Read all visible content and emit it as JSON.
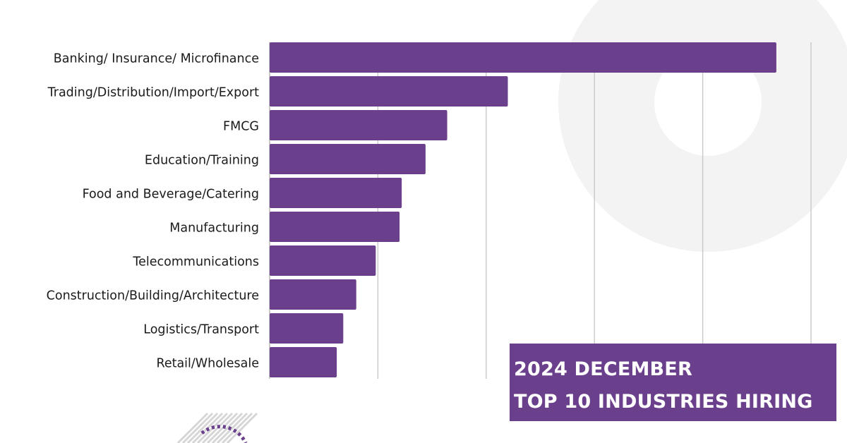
{
  "colors": {
    "bar": "#6a3f8c",
    "grid": "#c8c8c8",
    "background_arc": "#f3f3f3",
    "title_box": "#6a3f8c",
    "title_text": "#ffffff",
    "label_text": "#1a1a1a"
  },
  "title_box": {
    "line1": "2024 DECEMBER",
    "line2": "TOP 10 INDUSTRIES HIRING"
  },
  "chart_data": {
    "type": "bar",
    "orientation": "horizontal",
    "title": "2024 DECEMBER TOP 10 INDUSTRIES HIRING",
    "categories": [
      "Banking/ Insurance/ Microfinance",
      "Trading/Distribution/Import/Export",
      "FMCG",
      "Education/Training",
      "Food and Beverage/Catering",
      "Manufacturing",
      "Telecommunications",
      "Construction/Building/Architecture",
      "Logistics/Transport",
      "Retail/Wholesale"
    ],
    "values": [
      234,
      110,
      82,
      72,
      61,
      60,
      49,
      40,
      34,
      31
    ],
    "xlim": [
      0,
      250
    ],
    "grid": true,
    "tick_labels_shown": false,
    "legend": "none"
  }
}
